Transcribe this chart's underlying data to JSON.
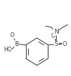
{
  "bg_color": "#ffffff",
  "line_color": "#3a3a3a",
  "figsize": [
    1.04,
    1.11
  ],
  "dpi": 100,
  "xlim": [
    0.0,
    1.0
  ],
  "ylim": [
    0.0,
    1.0
  ]
}
